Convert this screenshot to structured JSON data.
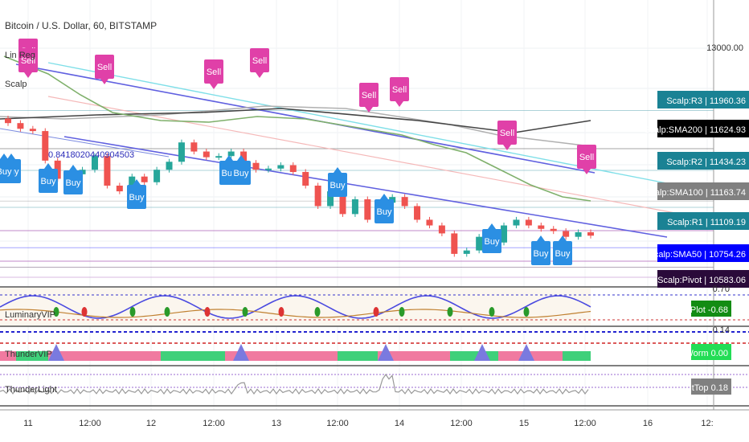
{
  "header": {
    "symbol": "Bitcoin / U.S. Dollar, 60, BITSTAMP",
    "indicator1": "Lin Reg",
    "indicator2": "Scalp"
  },
  "chart_data": {
    "type": "candlestick",
    "title": "Bitcoin / U.S. Dollar, 60, BITSTAMP",
    "x_ticks": [
      "11",
      "12:00",
      "12",
      "12:00",
      "13",
      "12:00",
      "14",
      "12:00",
      "15",
      "12:00",
      "16",
      "12:"
    ],
    "y_ticks": [
      "13000.00"
    ],
    "close_path": [
      11850,
      11800,
      11780,
      11520,
      11360,
      11400,
      11440,
      11560,
      11300,
      11250,
      11380,
      11330,
      11440,
      11510,
      11680,
      11600,
      11550,
      11560,
      11600,
      11500,
      11440,
      11450,
      11480,
      11420,
      11300,
      11120,
      11250,
      11050,
      11180,
      11000,
      11150,
      11200,
      11120,
      11000,
      10950,
      10880,
      10700,
      10730,
      10850,
      10800,
      10950,
      11000,
      10950,
      10920,
      10900,
      10850,
      10890,
      10860
    ],
    "price_labels": [
      {
        "name": "Scalp:R3",
        "value": "11960.36",
        "color": "#1a8294"
      },
      {
        "name": "Scalp:SMA200",
        "value": "11624.93",
        "color": "#000000"
      },
      {
        "name": "Scalp:R2",
        "value": "11434.23",
        "color": "#1a8294"
      },
      {
        "name": "Scalp:SMA100",
        "value": "11163.74",
        "color": "#808080"
      },
      {
        "name": "Scalp:R1",
        "value": "11109.19",
        "color": "#1a8294"
      },
      {
        "name": "Scalp:SMA50",
        "value": "10754.26",
        "color": "#0000ff"
      },
      {
        "name": "Scalp:Pivot",
        "value": "10583.06",
        "color": "#2a0a3a"
      }
    ],
    "annotation": "0.8418020440904503",
    "buy_count": 12,
    "sell_count": 9
  },
  "signals": {
    "buy": "Buy",
    "sell": "Sell"
  },
  "panes": {
    "pane1": {
      "name": "LuminaryVIP",
      "badge_label": "Plot",
      "badge_value": "-0.68",
      "badge_color": "#138c13",
      "partial_top": "0.70",
      "partial_bottom": "0.14"
    },
    "pane2": {
      "name": "ThunderVIP",
      "badge_label": "Worm",
      "badge_value": "0.00",
      "badge_color": "#22dd55"
    },
    "pane3": {
      "name": "ThunderLight",
      "badge_label": "tTop",
      "badge_value": "0.18",
      "badge_color": "#808080"
    }
  },
  "colors": {
    "up": "#26a69a",
    "down": "#ef5350",
    "buy": "#2b8fe3",
    "sell": "#e040a8",
    "linreg": "#6060e0",
    "sma": "#7fb06b"
  }
}
